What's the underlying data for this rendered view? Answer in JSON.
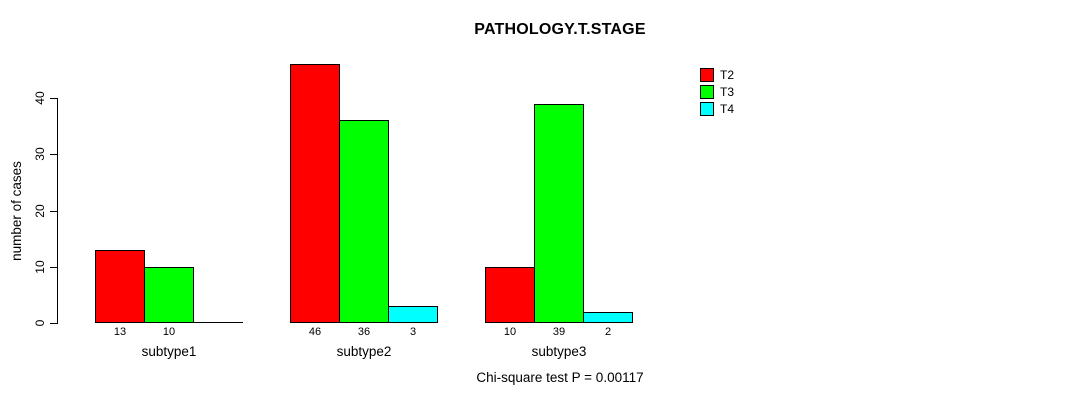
{
  "title": "PATHOLOGY.T.STAGE",
  "footer": "Chi-square test P = 0.00117",
  "y_axis": {
    "label": "number of cases",
    "ticks": [
      "0",
      "10",
      "20",
      "30",
      "40"
    ]
  },
  "legend": {
    "entries": [
      {
        "label": "T2",
        "color": "#ff0000"
      },
      {
        "label": "T3",
        "color": "#00ff00"
      },
      {
        "label": "T4",
        "color": "#00ffff"
      }
    ]
  },
  "chart_data": {
    "type": "bar",
    "grouped": true,
    "title": "PATHOLOGY.T.STAGE",
    "xlabel": "",
    "ylabel": "number of cases",
    "categories": [
      "subtype1",
      "subtype2",
      "subtype3"
    ],
    "series": [
      {
        "name": "T2",
        "color": "#ff0000",
        "values": [
          13,
          46,
          10
        ]
      },
      {
        "name": "T3",
        "color": "#00ff00",
        "values": [
          10,
          36,
          39
        ]
      },
      {
        "name": "T4",
        "color": "#00ffff",
        "values": [
          0,
          3,
          2
        ]
      }
    ],
    "ylim": [
      0,
      40
    ],
    "yticks": [
      0,
      10,
      20,
      30,
      40
    ],
    "bar_value_labels_shown": true,
    "zero_value_labels_hidden": true,
    "legend_position": "top-right",
    "grid": false,
    "annotation": "Chi-square test P = 0.00117",
    "annotation_position": "bottom-center"
  }
}
